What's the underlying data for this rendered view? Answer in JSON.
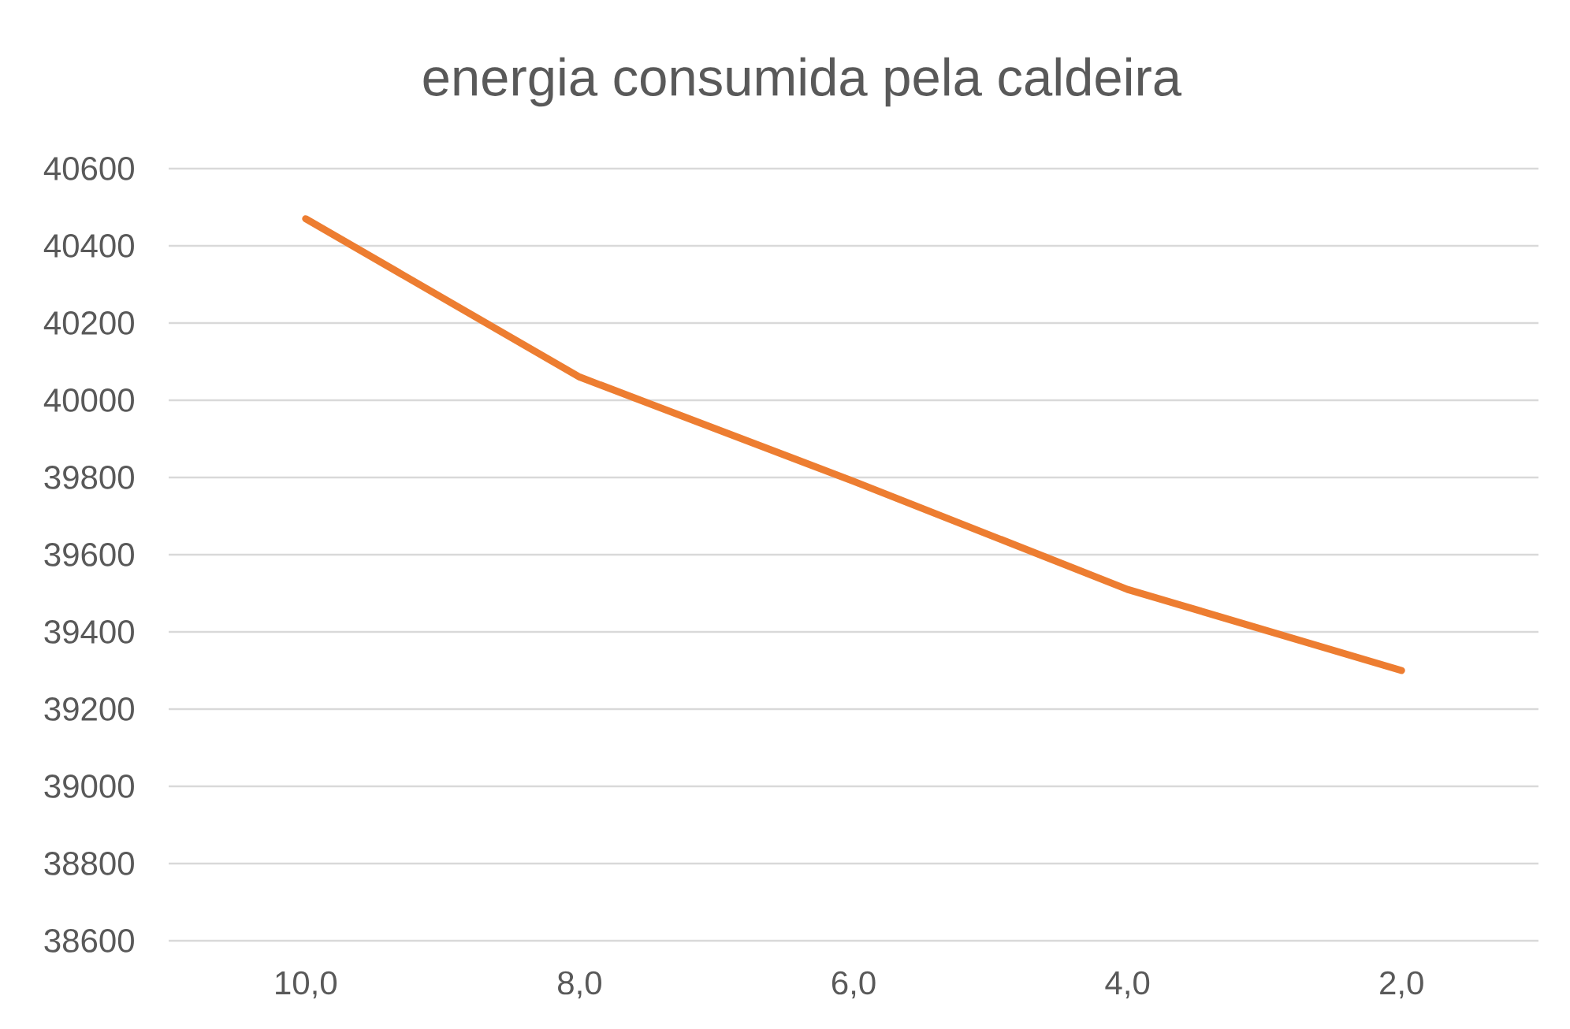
{
  "chart_data": {
    "type": "line",
    "title": "energia consumida pela caldeira",
    "categories": [
      "10,0",
      "8,0",
      "6,0",
      "4,0",
      "2,0"
    ],
    "values": [
      40470,
      40060,
      39790,
      39510,
      39300
    ],
    "color": "#ed7d31",
    "ylim": [
      38600,
      40600
    ],
    "yticks": [
      38600,
      38800,
      39000,
      39200,
      39400,
      39600,
      39800,
      40000,
      40200,
      40400,
      40600
    ],
    "grid": "y"
  }
}
